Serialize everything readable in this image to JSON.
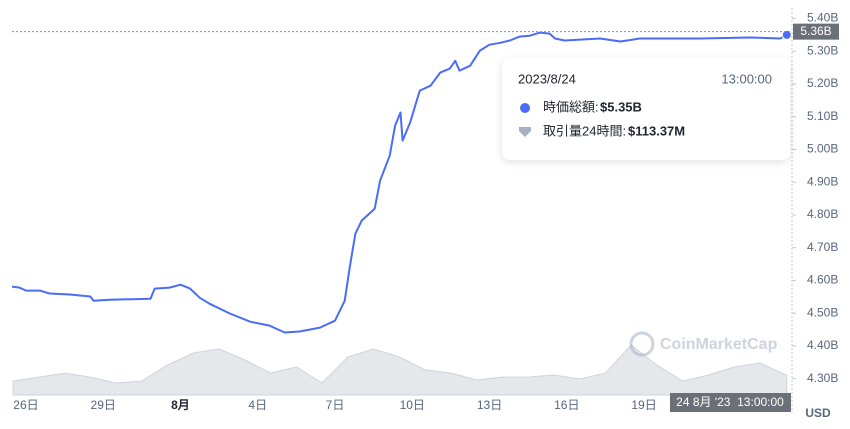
{
  "chart_data": {
    "type": "line",
    "series": [
      {
        "color": "#4a6cf7",
        "x": [
          "2023-07-25T11:00",
          "2023-07-25T18:00",
          "2023-07-26T00:00",
          "2023-07-26T13:00",
          "2023-07-26T22:00",
          "2023-07-27T17:00",
          "2023-07-28T12:00",
          "2023-07-28T15:00",
          "2023-07-29T06:00",
          "2023-07-30T20:00",
          "2023-07-31T00:00",
          "2023-07-31T14:00",
          "2023-08-01T00:00",
          "2023-08-01T09:00",
          "2023-08-01T18:00",
          "2023-08-02T03:00",
          "2023-08-02T22:00",
          "2023-08-03T17:00",
          "2023-08-04T11:00",
          "2023-08-05T01:00",
          "2023-08-05T15:00",
          "2023-08-06T10:00",
          "2023-08-07T00:00",
          "2023-08-07T09:00",
          "2023-08-07T14:00",
          "2023-08-07T19:00",
          "2023-08-08T01:00",
          "2023-08-08T13:00",
          "2023-08-08T18:00",
          "2023-08-09T03:00",
          "2023-08-09T08:00",
          "2023-08-09T13:00",
          "2023-08-09T15:00",
          "2023-08-09T22:00",
          "2023-08-10T07:00",
          "2023-08-10T17:00",
          "2023-08-11T02:00",
          "2023-08-11T11:00",
          "2023-08-11T16:00",
          "2023-08-11T20:00",
          "2023-08-12T06:00",
          "2023-08-12T15:00",
          "2023-08-13T00:00",
          "2023-08-13T10:00",
          "2023-08-13T19:00",
          "2023-08-14T04:00",
          "2023-08-14T14:00",
          "2023-08-14T23:00",
          "2023-08-15T08:00",
          "2023-08-15T13:00",
          "2023-08-15T22:00",
          "2023-08-17T07:00",
          "2023-08-18T02:00",
          "2023-08-18T20:00",
          "2023-08-21T04:00",
          "2023-08-23T03:00",
          "2023-08-24T07:00",
          "2023-08-24T13:00"
        ],
        "values": [
          4.581,
          4.578,
          4.569,
          4.569,
          4.56,
          4.557,
          4.551,
          4.538,
          4.541,
          4.544,
          4.575,
          4.578,
          4.587,
          4.575,
          4.547,
          4.529,
          4.499,
          4.474,
          4.462,
          4.441,
          4.444,
          4.456,
          4.477,
          4.538,
          4.645,
          4.743,
          4.783,
          4.819,
          4.905,
          4.981,
          5.073,
          5.113,
          5.027,
          5.082,
          5.18,
          5.195,
          5.235,
          5.247,
          5.271,
          5.241,
          5.256,
          5.302,
          5.32,
          5.326,
          5.333,
          5.345,
          5.348,
          5.357,
          5.354,
          5.339,
          5.333,
          5.339,
          5.33,
          5.339,
          5.339,
          5.342,
          5.339,
          5.35
        ]
      },
      {
        "color": "#e6e7eb",
        "axis": "y2",
        "x": [
          "2023-07-25T12:00",
          "2023-07-26T12:00",
          "2023-07-27T12:00",
          "2023-07-28T12:00",
          "2023-07-29T12:00",
          "2023-07-30T12:00",
          "2023-07-31T12:00",
          "2023-08-01T12:00",
          "2023-08-02T12:00",
          "2023-08-03T12:00",
          "2023-08-04T12:00",
          "2023-08-05T12:00",
          "2023-08-06T12:00",
          "2023-08-07T12:00",
          "2023-08-08T12:00",
          "2023-08-09T12:00",
          "2023-08-10T12:00",
          "2023-08-11T12:00",
          "2023-08-12T12:00",
          "2023-08-13T12:00",
          "2023-08-14T12:00",
          "2023-08-15T12:00",
          "2023-08-16T12:00",
          "2023-08-17T12:00",
          "2023-08-18T12:00",
          "2023-08-19T12:00",
          "2023-08-20T12:00",
          "2023-08-21T12:00",
          "2023-08-22T12:00",
          "2023-08-23T12:00",
          "2023-08-24T13:00"
        ],
        "values": [
          80,
          103,
          126,
          103,
          69,
          80,
          172,
          241,
          264,
          201,
          126,
          161,
          69,
          218,
          264,
          218,
          144,
          126,
          86,
          103,
          103,
          115,
          92,
          126,
          287,
          172,
          80,
          115,
          161,
          184,
          113.37
        ]
      }
    ],
    "xlim": [
      "2023-07-25T11:00",
      "2023-08-24T16:00"
    ],
    "xticks": [
      {
        "value": "2023-07-26",
        "label": "26日"
      },
      {
        "value": "2023-07-29",
        "label": "29日"
      },
      {
        "value": "2023-08-01",
        "label": "8月"
      },
      {
        "value": "2023-08-04",
        "label": "4日"
      },
      {
        "value": "2023-08-07",
        "label": "7日"
      },
      {
        "value": "2023-08-10",
        "label": "10日"
      },
      {
        "value": "2023-08-13",
        "label": "13日"
      },
      {
        "value": "2023-08-16",
        "label": "16日"
      },
      {
        "value": "2023-08-19",
        "label": "19日"
      }
    ],
    "ylim": [
      4.25,
      5.42
    ],
    "yticks": [
      {
        "value": 4.3,
        "label": "4.30B"
      },
      {
        "value": 4.4,
        "label": "4.40B"
      },
      {
        "value": 4.5,
        "label": "4.50B"
      },
      {
        "value": 4.6,
        "label": "4.60B"
      },
      {
        "value": 4.7,
        "label": "4.70B"
      },
      {
        "value": 4.8,
        "label": "4.80B"
      },
      {
        "value": 4.9,
        "label": "4.90B"
      },
      {
        "value": 5.0,
        "label": "5.00B"
      },
      {
        "value": 5.1,
        "label": "5.10B"
      },
      {
        "value": 5.2,
        "label": "5.20B"
      },
      {
        "value": 5.3,
        "label": "5.30B"
      },
      {
        "value": 5.4,
        "label": "5.40B"
      }
    ],
    "y2lim": [
      0,
      2200
    ],
    "grid": false,
    "price_marker": {
      "value": 5.36,
      "label": "5.36B"
    },
    "tooltip": {
      "date": "2023/8/24",
      "time": "13:00:00",
      "rows": [
        {
          "label": "時価総額:",
          "value": "$5.35B"
        },
        {
          "label": "取引量24時間:",
          "value": "$113.37M"
        }
      ]
    },
    "crosshair_label": "24 8月 '23  13:00:00",
    "currency": "USD",
    "watermark": "CoinMarketCap"
  }
}
